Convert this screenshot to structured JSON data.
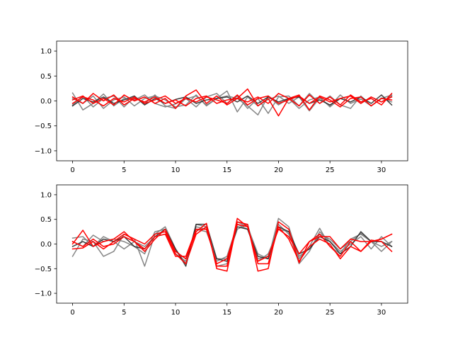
{
  "colors": {
    "gray": "#808080",
    "black": "#222222",
    "red": "#ff0000"
  },
  "chart_data": [
    {
      "type": "line",
      "title": "",
      "xlabel": "",
      "ylabel": "",
      "xlim": [
        -1.55,
        32.55
      ],
      "ylim": [
        -1.2,
        1.2
      ],
      "xticks": [
        0,
        5,
        10,
        15,
        20,
        25,
        30
      ],
      "yticks": [
        -1.0,
        -0.5,
        0.0,
        0.5,
        1.0
      ],
      "xtick_labels": [
        "0",
        "5",
        "10",
        "15",
        "20",
        "25",
        "30"
      ],
      "ytick_labels": [
        "−1.0",
        "−0.5",
        "0.0",
        "0.5",
        "1.0"
      ],
      "grid": false,
      "x": [
        0,
        1,
        2,
        3,
        4,
        5,
        6,
        7,
        8,
        9,
        10,
        11,
        12,
        13,
        14,
        15,
        16,
        17,
        18,
        19,
        20,
        21,
        22,
        23,
        24,
        25,
        26,
        27,
        28,
        29,
        30,
        31
      ],
      "series": [
        {
          "color": "gray",
          "values": [
            0.16,
            -0.18,
            -0.05,
            0.14,
            -0.1,
            0.05,
            0.02,
            0.12,
            -0.05,
            -0.12,
            -0.06,
            0.04,
            0.1,
            -0.08,
            0.05,
            0.2,
            -0.22,
            0.08,
            -0.1,
            0.03,
            0.1,
            -0.05,
            0.08,
            -0.2,
            0.06,
            -0.1,
            0.12,
            -0.05,
            0.04,
            -0.1,
            0.06,
            -0.02
          ]
        },
        {
          "color": "gray",
          "values": [
            -0.08,
            0.1,
            -0.12,
            0.05,
            0.1,
            -0.12,
            0.08,
            -0.05,
            0.12,
            -0.1,
            -0.15,
            0.05,
            -0.12,
            0.08,
            0.15,
            -0.05,
            0.1,
            -0.15,
            0.05,
            -0.25,
            0.08,
            0.1,
            -0.1,
            0.15,
            -0.05,
            0.1,
            -0.08,
            -0.15,
            0.1,
            -0.1,
            0.05,
            0.12
          ]
        },
        {
          "color": "gray",
          "values": [
            0.05,
            -0.05,
            0.1,
            -0.15,
            0.02,
            0.08,
            -0.1,
            0.05,
            0.1,
            0.02,
            -0.12,
            -0.08,
            0.12,
            -0.1,
            0.05,
            0.1,
            0.05,
            -0.1,
            -0.28,
            0.1,
            -0.08,
            0.05,
            -0.15,
            0.02,
            0.08,
            -0.12,
            0.05,
            0.1,
            -0.05,
            0.08,
            -0.02,
            0.1
          ]
        },
        {
          "color": "black",
          "values": [
            -0.1,
            0.05,
            -0.02,
            0.08,
            -0.05,
            0.02,
            0.1,
            -0.08,
            0.05,
            -0.05,
            0.03,
            0.08,
            -0.05,
            0.02,
            0.05,
            0.08,
            -0.02,
            0.1,
            -0.05,
            0.08,
            -0.02,
            0.05,
            0.08,
            -0.05,
            0.02,
            -0.08,
            0.05,
            -0.02,
            0.08,
            -0.05,
            0.12,
            -0.08
          ]
        },
        {
          "color": "red",
          "values": [
            0.08,
            -0.05,
            0.15,
            0.0,
            0.12,
            -0.08,
            0.05,
            -0.02,
            0.08,
            -0.05,
            0.02,
            -0.1,
            0.05,
            0.1,
            -0.05,
            0.02,
            0.05,
            -0.02,
            0.08,
            -0.05,
            0.15,
            0.05,
            -0.1,
            0.12,
            -0.05,
            0.08,
            -0.08,
            0.12,
            -0.02,
            0.05,
            -0.08,
            0.15
          ]
        },
        {
          "color": "red",
          "values": [
            0.02,
            0.1,
            -0.05,
            0.05,
            -0.08,
            0.12,
            0.0,
            0.08,
            -0.05,
            0.05,
            -0.15,
            0.1,
            0.22,
            -0.05,
            0.1,
            -0.08,
            0.05,
            0.24,
            -0.1,
            0.05,
            -0.3,
            0.05,
            0.12,
            -0.18,
            0.1,
            0.02,
            -0.12,
            0.05,
            0.08,
            -0.1,
            0.05,
            0.02
          ]
        },
        {
          "color": "red",
          "values": [
            -0.05,
            0.08,
            0.02,
            -0.1,
            0.05,
            -0.02,
            0.08,
            -0.05,
            0.02,
            0.1,
            -0.05,
            0.05,
            -0.02,
            0.08,
            0.02,
            -0.05,
            0.12,
            -0.08,
            0.05,
            0.1,
            -0.05,
            0.02,
            0.1,
            -0.05,
            0.08,
            -0.02,
            0.05,
            0.1,
            -0.05,
            0.08,
            -0.02,
            0.08
          ]
        }
      ]
    },
    {
      "type": "line",
      "title": "",
      "xlabel": "",
      "ylabel": "",
      "xlim": [
        -1.55,
        32.55
      ],
      "ylim": [
        -1.2,
        1.2
      ],
      "xticks": [
        0,
        5,
        10,
        15,
        20,
        25,
        30
      ],
      "yticks": [
        -1.0,
        -0.5,
        0.0,
        0.5,
        1.0
      ],
      "xtick_labels": [
        "0",
        "5",
        "10",
        "15",
        "20",
        "25",
        "30"
      ],
      "ytick_labels": [
        "−1.0",
        "−0.5",
        "0.0",
        "0.5",
        "1.0"
      ],
      "grid": false,
      "x": [
        0,
        1,
        2,
        3,
        4,
        5,
        6,
        7,
        8,
        9,
        10,
        11,
        12,
        13,
        14,
        15,
        16,
        17,
        18,
        19,
        20,
        21,
        22,
        23,
        24,
        25,
        26,
        27,
        28,
        29,
        30,
        31
      ],
      "series": [
        {
          "color": "gray",
          "values": [
            -0.25,
            0.1,
            0.05,
            -0.25,
            -0.15,
            0.2,
            0.1,
            -0.45,
            0.2,
            0.35,
            -0.1,
            -0.4,
            0.4,
            0.35,
            -0.45,
            -0.4,
            0.45,
            0.35,
            -0.2,
            -0.3,
            0.52,
            0.35,
            -0.3,
            -0.05,
            0.32,
            -0.05,
            -0.2,
            0.1,
            0.2,
            0.05,
            -0.15,
            0.05
          ]
        },
        {
          "color": "gray",
          "values": [
            0.12,
            0.15,
            -0.05,
            0.15,
            0.05,
            -0.1,
            0.05,
            -0.05,
            0.15,
            0.2,
            -0.15,
            -0.3,
            0.3,
            0.25,
            -0.3,
            -0.3,
            0.3,
            0.4,
            -0.35,
            -0.2,
            0.3,
            0.25,
            -0.4,
            -0.15,
            0.25,
            0.05,
            -0.15,
            0.0,
            0.15,
            -0.1,
            0.15,
            -0.05
          ]
        },
        {
          "color": "gray",
          "values": [
            0.05,
            -0.05,
            0.18,
            0.05,
            0.1,
            0.05,
            -0.05,
            -0.2,
            0.25,
            0.3,
            -0.2,
            -0.35,
            0.35,
            0.3,
            -0.35,
            -0.25,
            0.4,
            0.3,
            -0.3,
            -0.25,
            0.4,
            0.2,
            -0.25,
            -0.1,
            0.2,
            0.1,
            -0.1,
            0.05,
            0.22,
            0.05,
            -0.05,
            0.05
          ]
        },
        {
          "color": "black",
          "values": [
            -0.05,
            0.05,
            -0.05,
            0.1,
            0.05,
            0.15,
            -0.05,
            -0.1,
            0.15,
            0.3,
            -0.1,
            -0.45,
            0.4,
            0.4,
            -0.3,
            -0.35,
            0.35,
            0.3,
            -0.25,
            -0.3,
            0.35,
            0.25,
            -0.2,
            -0.1,
            0.15,
            0.05,
            -0.2,
            -0.05,
            0.25,
            0.05,
            0.05,
            -0.05
          ]
        },
        {
          "color": "red",
          "values": [
            0.0,
            0.28,
            -0.05,
            0.05,
            0.1,
            0.25,
            0.05,
            -0.15,
            0.1,
            0.3,
            -0.15,
            -0.3,
            0.25,
            0.42,
            -0.5,
            -0.55,
            0.45,
            0.4,
            -0.55,
            -0.5,
            0.45,
            0.3,
            -0.38,
            0.05,
            0.2,
            -0.05,
            -0.25,
            0.05,
            -0.15,
            0.05,
            0.1,
            0.2
          ]
        },
        {
          "color": "red",
          "values": [
            -0.1,
            -0.08,
            0.05,
            -0.1,
            0.05,
            0.2,
            0.1,
            0.0,
            0.2,
            0.25,
            -0.2,
            -0.4,
            0.2,
            0.35,
            -0.45,
            -0.45,
            0.52,
            0.35,
            -0.4,
            -0.4,
            0.35,
            0.1,
            -0.35,
            -0.05,
            0.1,
            0.0,
            -0.3,
            -0.05,
            -0.15,
            0.08,
            0.05,
            -0.15
          ]
        },
        {
          "color": "red",
          "values": [
            0.05,
            -0.05,
            0.1,
            -0.05,
            0.0,
            0.15,
            0.05,
            -0.1,
            0.15,
            0.2,
            -0.25,
            -0.25,
            0.3,
            0.3,
            -0.4,
            -0.3,
            0.4,
            0.35,
            -0.35,
            -0.25,
            0.3,
            0.15,
            -0.2,
            0.05,
            0.15,
            0.15,
            -0.1,
            0.1,
            0.05,
            0.05,
            0.1,
            0.2
          ]
        }
      ]
    }
  ]
}
